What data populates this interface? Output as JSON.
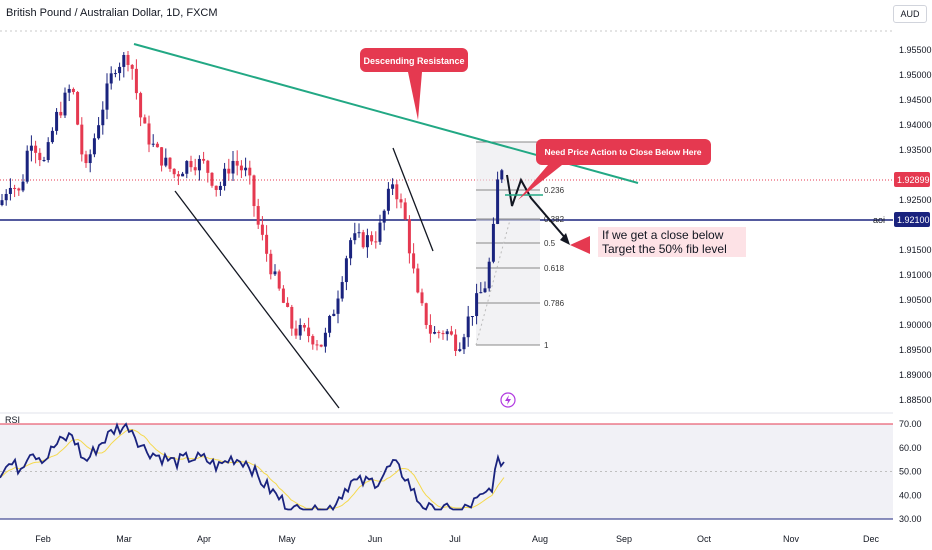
{
  "header": {
    "title": "British Pound / Australian Dollar, 1D, FXCM",
    "currency": "AUD"
  },
  "chart_data": {
    "type": "candlestick",
    "price_axis": {
      "range": [
        1.883,
        1.959
      ],
      "ticks": [
        "1.95500",
        "1.95000",
        "1.94500",
        "1.94000",
        "1.93500",
        "1.92500",
        "1.91500",
        "1.91000",
        "1.90500",
        "1.90000",
        "1.89500",
        "1.89000",
        "1.88500"
      ],
      "current_price": "1.92899",
      "aoi_level": "1.92100",
      "aoi_label": "aoi"
    },
    "time_axis": {
      "labels": [
        "Feb",
        "Mar",
        "Apr",
        "May",
        "Jun",
        "Jul",
        "Aug",
        "Sep",
        "Oct",
        "Nov",
        "Dec"
      ]
    },
    "fib_levels": [
      {
        "label": "0.236"
      },
      {
        "label": "0.382"
      },
      {
        "label": "0.5"
      },
      {
        "label": "0.618"
      },
      {
        "label": "0.786"
      },
      {
        "label": "1"
      }
    ],
    "annotations": {
      "descending_resistance": "Descending Resistance",
      "need_close": "Need Price Action to Close Below Here",
      "target_line1": "If we get a close below",
      "target_line2": "Target the 50% fib level"
    },
    "rsi": {
      "label": "RSI",
      "range": [
        30,
        70
      ],
      "ticks": [
        "70.00",
        "60.00",
        "50.00",
        "40.00",
        "30.00"
      ]
    },
    "colors": {
      "up": "#1a237e",
      "down": "#e53950",
      "resistance": "#22a884",
      "aoi": "#1a237e",
      "callout": "#e53950",
      "rsi_line": "#1a237e",
      "rsi_ma": "#f5d94d"
    }
  }
}
